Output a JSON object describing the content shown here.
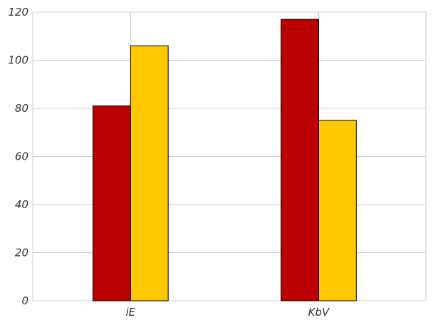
{
  "chart_data": {
    "type": "bar",
    "categories": [
      "iE",
      "KbV"
    ],
    "series": [
      {
        "values": [
          81,
          117
        ],
        "color": "#bb0000"
      },
      {
        "values": [
          106,
          75
        ],
        "color": "#ffc800"
      }
    ],
    "ylim": [
      0,
      120
    ],
    "yticks": [
      0,
      20,
      40,
      60,
      80,
      100,
      120
    ],
    "grid": true,
    "legend": "none",
    "title": "",
    "xlabel": "",
    "ylabel": ""
  }
}
